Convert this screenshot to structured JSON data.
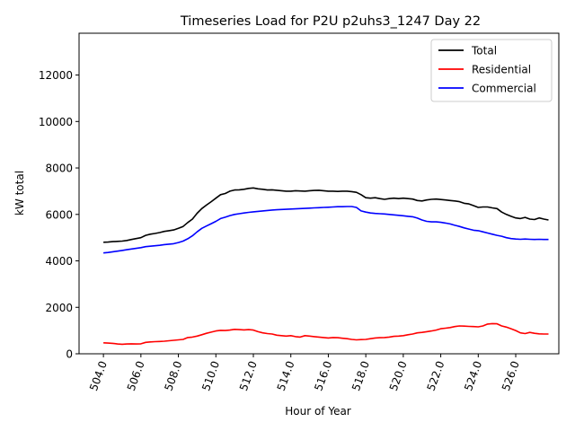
{
  "chart_data": {
    "type": "line",
    "title": "Timeseries Load for P2U p2uhs3_1247  Day 22",
    "xlabel": "Hour of Year",
    "ylabel": "kW total",
    "xlim": [
      502.7,
      528.3
    ],
    "ylim": [
      0,
      13800
    ],
    "xticks": [
      "504.0",
      "506.0",
      "508.0",
      "510.0",
      "512.0",
      "514.0",
      "516.0",
      "518.0",
      "520.0",
      "522.0",
      "524.0",
      "526.0"
    ],
    "yticks": [
      "0",
      "2000",
      "4000",
      "6000",
      "8000",
      "10000",
      "12000"
    ],
    "legend_position": "top-right",
    "x": [
      504.0,
      504.25,
      504.5,
      504.75,
      505.0,
      505.25,
      505.5,
      505.75,
      506.0,
      506.25,
      506.5,
      506.75,
      507.0,
      507.25,
      507.5,
      507.75,
      508.0,
      508.25,
      508.5,
      508.75,
      509.0,
      509.25,
      509.5,
      509.75,
      510.0,
      510.25,
      510.5,
      510.75,
      511.0,
      511.25,
      511.5,
      511.75,
      512.0,
      512.25,
      512.5,
      512.75,
      513.0,
      513.25,
      513.5,
      513.75,
      514.0,
      514.25,
      514.5,
      514.75,
      515.0,
      515.25,
      515.5,
      515.75,
      516.0,
      516.25,
      516.5,
      516.75,
      517.0,
      517.25,
      517.5,
      517.75,
      518.0,
      518.25,
      518.5,
      518.75,
      519.0,
      519.25,
      519.5,
      519.75,
      520.0,
      520.25,
      520.5,
      520.75,
      521.0,
      521.25,
      521.5,
      521.75,
      522.0,
      522.25,
      522.5,
      522.75,
      523.0,
      523.25,
      523.5,
      523.75,
      524.0,
      524.25,
      524.5,
      524.75,
      525.0,
      525.25,
      525.5,
      525.75,
      526.0,
      526.25,
      526.5,
      526.75,
      527.0,
      527.25,
      527.5,
      527.75
    ],
    "series": [
      {
        "name": "Total",
        "color": "#000000",
        "values": [
          4800,
          4810,
          4830,
          4840,
          4850,
          4880,
          4920,
          4960,
          5000,
          5100,
          5150,
          5180,
          5220,
          5270,
          5300,
          5330,
          5400,
          5480,
          5650,
          5800,
          6050,
          6250,
          6400,
          6550,
          6700,
          6850,
          6900,
          7000,
          7050,
          7060,
          7080,
          7120,
          7140,
          7100,
          7080,
          7050,
          7060,
          7040,
          7020,
          7000,
          7000,
          7020,
          7010,
          7000,
          7020,
          7030,
          7040,
          7020,
          7000,
          7000,
          6990,
          7000,
          7000,
          6980,
          6950,
          6850,
          6720,
          6700,
          6720,
          6680,
          6650,
          6680,
          6700,
          6680,
          6700,
          6680,
          6660,
          6600,
          6580,
          6620,
          6650,
          6660,
          6640,
          6620,
          6600,
          6580,
          6550,
          6480,
          6450,
          6380,
          6300,
          6320,
          6320,
          6280,
          6250,
          6100,
          6000,
          5920,
          5850,
          5820,
          5870,
          5800,
          5780,
          5850,
          5800,
          5760
        ]
      },
      {
        "name": "Residential",
        "color": "#ff0000",
        "values": [
          470,
          460,
          450,
          420,
          410,
          420,
          430,
          420,
          430,
          490,
          510,
          520,
          530,
          540,
          560,
          580,
          600,
          620,
          700,
          720,
          760,
          820,
          880,
          930,
          980,
          1010,
          1000,
          1020,
          1050,
          1040,
          1030,
          1040,
          1020,
          950,
          900,
          870,
          850,
          800,
          780,
          760,
          780,
          740,
          720,
          780,
          760,
          740,
          720,
          700,
          680,
          700,
          690,
          670,
          650,
          620,
          600,
          610,
          620,
          650,
          680,
          690,
          700,
          720,
          750,
          760,
          780,
          820,
          850,
          900,
          920,
          950,
          980,
          1020,
          1080,
          1100,
          1130,
          1170,
          1200,
          1190,
          1180,
          1170,
          1160,
          1200,
          1280,
          1300,
          1290,
          1200,
          1150,
          1080,
          1000,
          900,
          870,
          920,
          880,
          860,
          850,
          850
        ]
      },
      {
        "name": "Commercial",
        "color": "#0000ff",
        "values": [
          4340,
          4360,
          4390,
          4420,
          4450,
          4480,
          4510,
          4540,
          4570,
          4610,
          4630,
          4650,
          4670,
          4700,
          4720,
          4740,
          4790,
          4850,
          4950,
          5080,
          5250,
          5400,
          5500,
          5600,
          5700,
          5820,
          5880,
          5950,
          6000,
          6030,
          6060,
          6090,
          6110,
          6130,
          6150,
          6170,
          6190,
          6200,
          6210,
          6220,
          6230,
          6240,
          6250,
          6260,
          6270,
          6280,
          6290,
          6300,
          6310,
          6320,
          6330,
          6330,
          6340,
          6340,
          6300,
          6150,
          6100,
          6060,
          6040,
          6030,
          6020,
          6000,
          5980,
          5960,
          5940,
          5920,
          5900,
          5840,
          5760,
          5700,
          5680,
          5680,
          5660,
          5630,
          5590,
          5530,
          5480,
          5420,
          5370,
          5320,
          5300,
          5250,
          5200,
          5150,
          5100,
          5060,
          5000,
          4960,
          4940,
          4930,
          4940,
          4930,
          4920,
          4930,
          4920,
          4920
        ]
      }
    ]
  }
}
